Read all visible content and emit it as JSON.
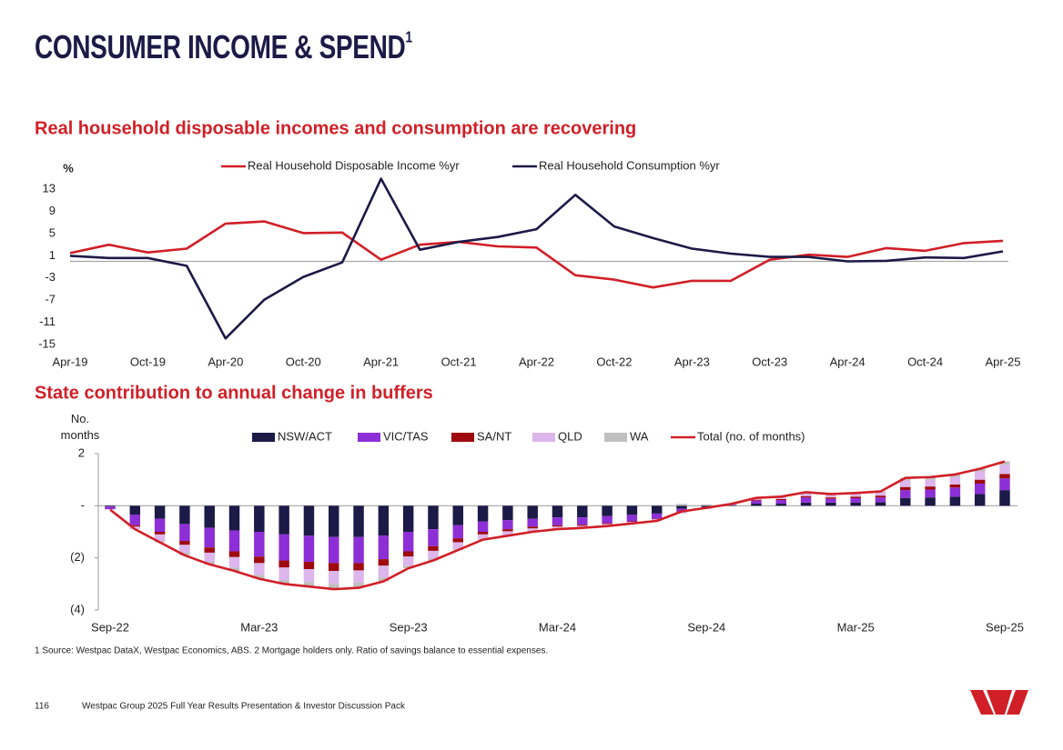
{
  "header": {
    "title": "CONSUMER INCOME & SPEND",
    "title_superscript": "1"
  },
  "chart_data": [
    {
      "type": "line",
      "title": "Real household disposable incomes and consumption are recovering",
      "y_label": "%",
      "categories": [
        "Apr-19",
        null,
        "Oct-19",
        null,
        "Apr-20",
        null,
        "Oct-20",
        null,
        "Apr-21",
        null,
        "Oct-21",
        null,
        "Apr-22",
        null,
        "Oct-22",
        null,
        "Apr-23",
        null,
        "Oct-23",
        null,
        "Apr-24",
        null,
        "Oct-24",
        null,
        "Apr-25"
      ],
      "series": [
        {
          "name": "Real Household Disposable Income %yr",
          "color": "#d11f27",
          "values": [
            1.5,
            3.0,
            1.6,
            2.3,
            6.8,
            7.2,
            5.1,
            5.2,
            0.3,
            3.0,
            3.5,
            2.7,
            2.5,
            -2.5,
            -3.3,
            -4.7,
            -3.5,
            -3.5,
            0.3,
            1.2,
            0.8,
            2.4,
            1.9,
            3.3,
            3.7
          ]
        },
        {
          "name": "Real Household Consumption %yr",
          "color": "#1c1a47",
          "values": [
            1.0,
            0.6,
            0.6,
            -0.8,
            -13.9,
            -6.9,
            -2.8,
            -0.2,
            14.9,
            2.1,
            3.5,
            4.4,
            5.8,
            12.0,
            6.3,
            4.2,
            2.3,
            1.4,
            0.8,
            0.8,
            0.0,
            0.1,
            0.7,
            0.6,
            1.8
          ]
        }
      ],
      "ylim": [
        -15,
        15
      ],
      "yticks": [
        13,
        9,
        5,
        1,
        -3,
        -7,
        -11,
        -15
      ],
      "grid": false
    },
    {
      "type": "bar",
      "stacked": true,
      "title": "State contribution to annual change in buffers",
      "y_label": "No. months",
      "categories": [
        "Sep-22",
        null,
        null,
        null,
        null,
        null,
        "Mar-23",
        null,
        null,
        null,
        null,
        null,
        "Sep-23",
        null,
        null,
        null,
        null,
        null,
        "Mar-24",
        null,
        null,
        null,
        null,
        null,
        "Sep-24",
        null,
        null,
        null,
        null,
        null,
        "Mar-25",
        null,
        null,
        null,
        null,
        null,
        "Sep-25"
      ],
      "series": [
        {
          "name": "NSW/ACT",
          "color": "#1c1a47",
          "values": [
            -0.03,
            -0.35,
            -0.5,
            -0.7,
            -0.85,
            -0.95,
            -1.0,
            -1.1,
            -1.15,
            -1.2,
            -1.2,
            -1.15,
            -1.0,
            -0.9,
            -0.75,
            -0.6,
            -0.55,
            -0.5,
            -0.45,
            -0.45,
            -0.4,
            -0.35,
            -0.3,
            -0.12,
            -0.05,
            0.02,
            0.08,
            0.08,
            0.12,
            0.12,
            0.12,
            0.14,
            0.3,
            0.32,
            0.35,
            0.45,
            0.6
          ]
        },
        {
          "name": "VIC/TAS",
          "color": "#8d2fd6",
          "values": [
            -0.1,
            -0.4,
            -0.5,
            -0.65,
            -0.75,
            -0.8,
            -0.95,
            -1.0,
            -1.0,
            -1.0,
            -1.0,
            -0.9,
            -0.75,
            -0.65,
            -0.5,
            -0.4,
            -0.35,
            -0.3,
            -0.3,
            -0.28,
            -0.27,
            -0.25,
            -0.2,
            -0.1,
            -0.04,
            0.02,
            0.12,
            0.14,
            0.2,
            0.15,
            0.17,
            0.18,
            0.3,
            0.3,
            0.35,
            0.4,
            0.45
          ]
        },
        {
          "name": "SA/NT",
          "color": "#9e0a0e",
          "values": [
            0,
            -0.05,
            -0.1,
            -0.15,
            -0.2,
            -0.22,
            -0.25,
            -0.27,
            -0.28,
            -0.3,
            -0.28,
            -0.25,
            -0.2,
            -0.18,
            -0.15,
            -0.1,
            -0.08,
            -0.07,
            -0.05,
            -0.04,
            -0.03,
            -0.02,
            -0.02,
            -0.02,
            0,
            0,
            0.03,
            0.04,
            0.05,
            0.05,
            0.06,
            0.07,
            0.12,
            0.12,
            0.12,
            0.15,
            0.17
          ]
        },
        {
          "name": "QLD",
          "color": "#dcb6ec",
          "values": [
            -0.02,
            -0.1,
            -0.25,
            -0.3,
            -0.35,
            -0.4,
            -0.45,
            -0.48,
            -0.5,
            -0.5,
            -0.47,
            -0.45,
            -0.35,
            -0.3,
            -0.25,
            -0.17,
            -0.15,
            -0.12,
            -0.1,
            -0.08,
            -0.08,
            -0.06,
            -0.06,
            -0.05,
            -0.04,
            0.01,
            0.05,
            0.06,
            0.1,
            0.1,
            0.1,
            0.12,
            0.25,
            0.26,
            0.28,
            0.32,
            0.35
          ]
        },
        {
          "name": "WA",
          "color": "#bfbfbf",
          "values": [
            0,
            0,
            -0.05,
            -0.1,
            -0.1,
            -0.13,
            -0.15,
            -0.15,
            -0.17,
            -0.2,
            -0.2,
            -0.15,
            -0.1,
            -0.07,
            -0.05,
            -0.03,
            -0.02,
            -0.01,
            0,
            0,
            0,
            0,
            0,
            0.07,
            0.05,
            0.02,
            0.02,
            0.03,
            0.05,
            0.03,
            0.04,
            0.04,
            0.1,
            0.1,
            0.1,
            0.1,
            0.13
          ]
        },
        {
          "name": "Total (no. of months)",
          "color": "#d11f27",
          "type": "line",
          "values": [
            -0.15,
            -0.9,
            -1.4,
            -1.9,
            -2.25,
            -2.5,
            -2.8,
            -3.0,
            -3.1,
            -3.2,
            -3.15,
            -2.9,
            -2.4,
            -2.1,
            -1.7,
            -1.3,
            -1.15,
            -1.0,
            -0.9,
            -0.85,
            -0.78,
            -0.68,
            -0.58,
            -0.22,
            -0.08,
            0.07,
            0.3,
            0.35,
            0.52,
            0.45,
            0.49,
            0.55,
            1.07,
            1.1,
            1.2,
            1.42,
            1.7
          ]
        }
      ],
      "ylim": [
        -4,
        2
      ],
      "yticks": [
        2,
        {
          "value": 0,
          "label": "-"
        },
        {
          "value": -2,
          "label": "(2)"
        },
        {
          "value": -4,
          "label": "(4)"
        }
      ]
    }
  ],
  "footnote": "1 Source: Westpac DataX, Westpac Economics, ABS. 2 Mortgage holders only. Ratio of savings balance to essential expenses.",
  "footer": {
    "page": "116",
    "text": "Westpac Group 2025 Full Year Results Presentation & Investor Discussion Pack"
  }
}
